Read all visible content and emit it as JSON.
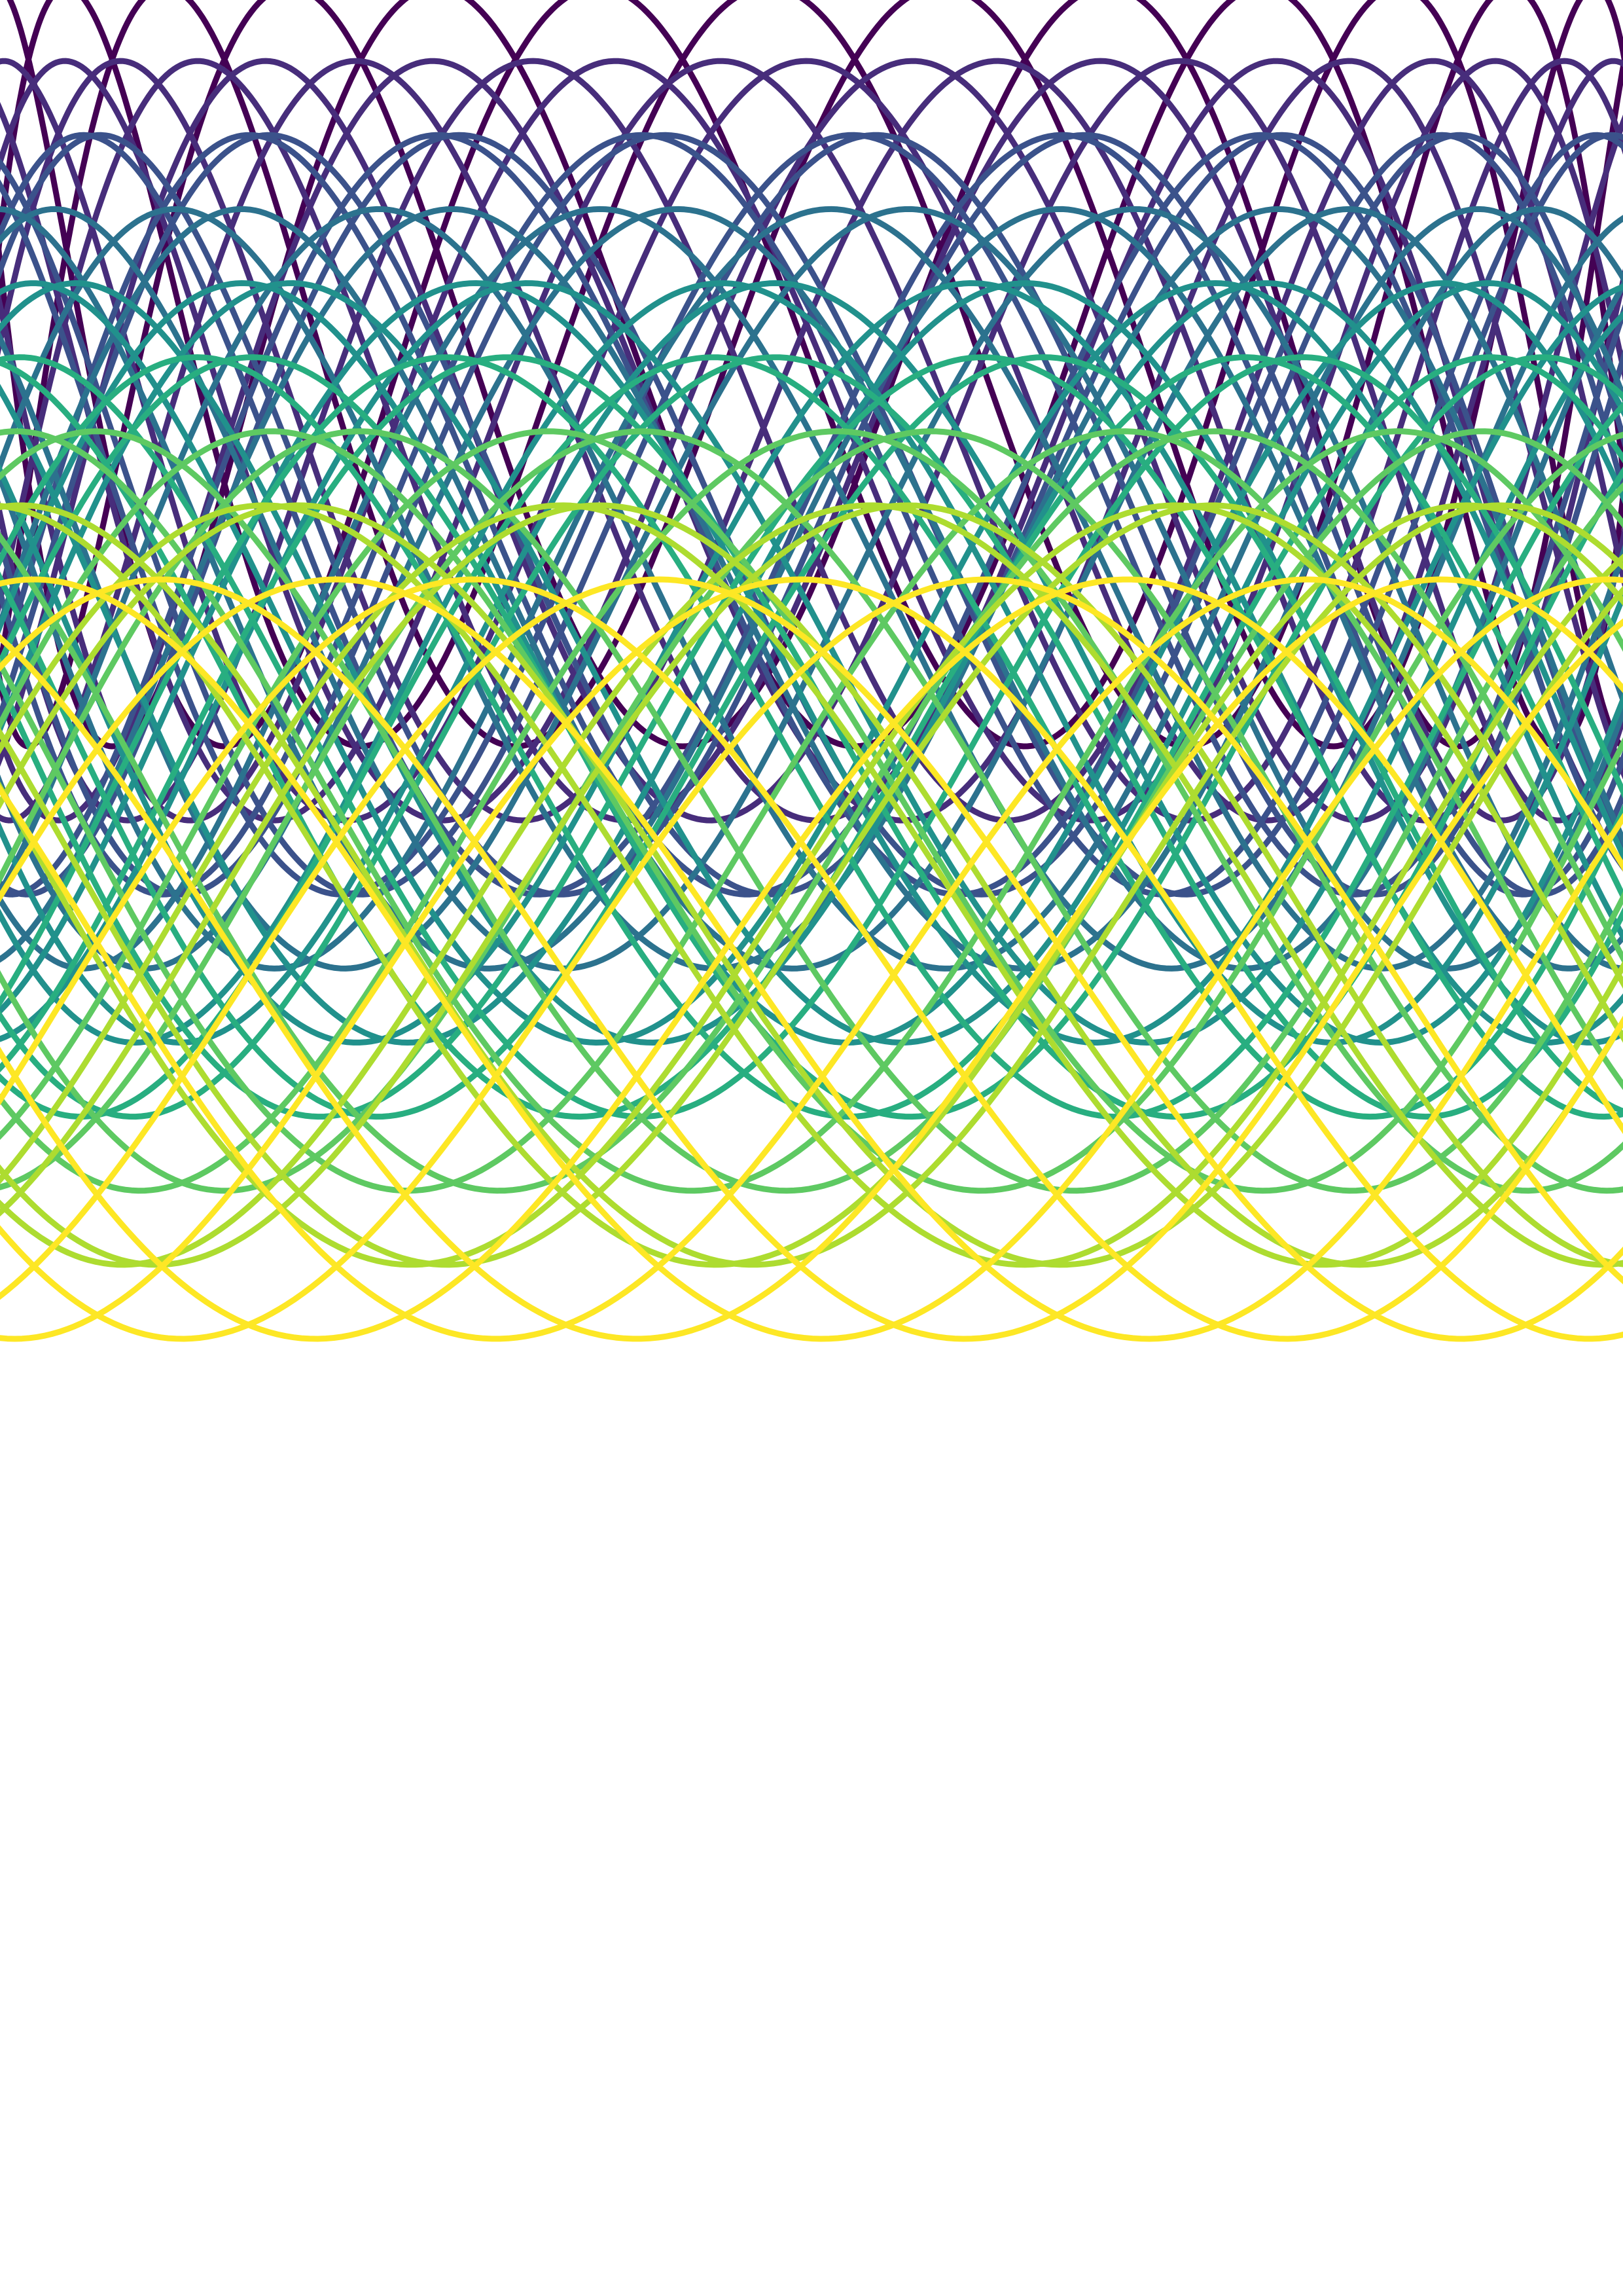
{
  "artwork": {
    "description_free": true,
    "background": "#ffffff",
    "palette": "viridis",
    "curves": [
      {
        "color": "#440154"
      },
      {
        "color": "#472d7b"
      },
      {
        "color": "#3b528b"
      },
      {
        "color": "#2c728e"
      },
      {
        "color": "#21918c"
      },
      {
        "color": "#28ae80"
      },
      {
        "color": "#5ec962"
      },
      {
        "color": "#addc30"
      },
      {
        "color": "#fde725"
      }
    ]
  }
}
